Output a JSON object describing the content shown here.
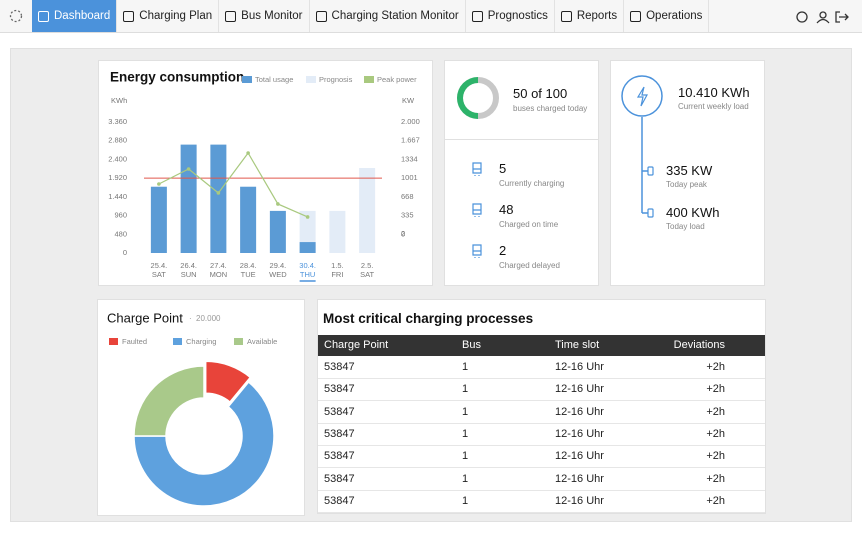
{
  "nav": {
    "items": [
      "Dashboard",
      "Charging Plan",
      "Bus Monitor",
      "Charging Station Monitor",
      "Prognostics",
      "Reports",
      "Operations"
    ],
    "active": 0
  },
  "chart_data": [
    {
      "type": "bar",
      "title": "Energy consumption",
      "categories": [
        "25.4.",
        "26.4.",
        "27.4.",
        "28.4.",
        "29.4.",
        "30.4.",
        "1.5.",
        "2.5."
      ],
      "day_labels": [
        "SAT",
        "SUN",
        "MON",
        "TUE",
        "WED",
        "THU",
        "FRI",
        "SAT"
      ],
      "highlight": 5,
      "y_label": "KWh",
      "y2_label": "KW",
      "ylim": [
        0,
        3360
      ],
      "yticks": [
        {
          "value": 3360,
          "label": "3.360"
        },
        {
          "value": 2880,
          "label": "2.880"
        },
        {
          "value": 2400,
          "label": "2.400"
        },
        {
          "value": 1920,
          "label": "1.920"
        },
        {
          "value": 1440,
          "label": "1.440"
        },
        960,
        480,
        0
      ],
      "y2lim": [
        -333,
        2000
      ],
      "y2ticks": [
        {
          "value": 2000,
          "label": "2.000"
        },
        {
          "value": 1667,
          "label": "1.667"
        },
        1334,
        1001,
        668,
        335,
        2,
        0
      ],
      "series": [
        {
          "name": "Total usage",
          "color": "#5b9bd5",
          "values": [
            1700,
            2780,
            2780,
            1700,
            1080,
            280,
            null,
            null
          ]
        },
        {
          "name": "Prognosis",
          "color": "#e3ecf7",
          "values": [
            null,
            null,
            null,
            null,
            null,
            1080,
            1080,
            2180
          ]
        },
        {
          "name": "Peak power",
          "color": "#a9c97f",
          "type": "line",
          "axis": "y2",
          "values": [
            896,
            1163,
            736,
            1448,
            540,
            309,
            null,
            null
          ]
        }
      ],
      "threshold": {
        "value": 1920,
        "color": "#e0574c"
      },
      "grid": false,
      "legend": "top-right"
    },
    {
      "type": "pie",
      "title": "Charge Point",
      "subtitle": "20.000",
      "donut": true,
      "exploded": 0,
      "categories": [
        "Faulted",
        "Charging",
        "Available"
      ],
      "values": [
        11,
        64,
        25
      ],
      "colors": [
        "#e8443a",
        "#5ea1de",
        "#a9c98a"
      ],
      "legend": "top-left"
    }
  ],
  "progress": {
    "value": 50,
    "total": 100,
    "label": "50 of 100",
    "caption": "buses charged today",
    "color": "#2db36a",
    "track_color": "#c8c8c8"
  },
  "status": [
    {
      "value": 5,
      "label": "Currently charging"
    },
    {
      "value": 48,
      "label": "Charged on time"
    },
    {
      "value": 2,
      "label": "Charged delayed"
    }
  ],
  "load": {
    "weekly": {
      "value": "10.410 KWh",
      "label": "Current weekly load"
    },
    "items": [
      {
        "value": "335 KW",
        "label": "Today peak"
      },
      {
        "value": "400 KWh",
        "label": "Today load"
      }
    ]
  },
  "table": {
    "title": "Most critical charging processes",
    "columns": [
      "Charge Point",
      "Bus",
      "Time slot",
      "Deviations"
    ],
    "rows": [
      [
        "53847",
        "1",
        "12-16 Uhr",
        "+2h"
      ],
      [
        "53847",
        "1",
        "12-16 Uhr",
        "+2h"
      ],
      [
        "53847",
        "1",
        "12-16 Uhr",
        "+2h"
      ],
      [
        "53847",
        "1",
        "12-16 Uhr",
        "+2h"
      ],
      [
        "53847",
        "1",
        "12-16 Uhr",
        "+2h"
      ],
      [
        "53847",
        "1",
        "12-16 Uhr",
        "+2h"
      ],
      [
        "53847",
        "1",
        "12-16 Uhr",
        "+2h"
      ]
    ]
  }
}
